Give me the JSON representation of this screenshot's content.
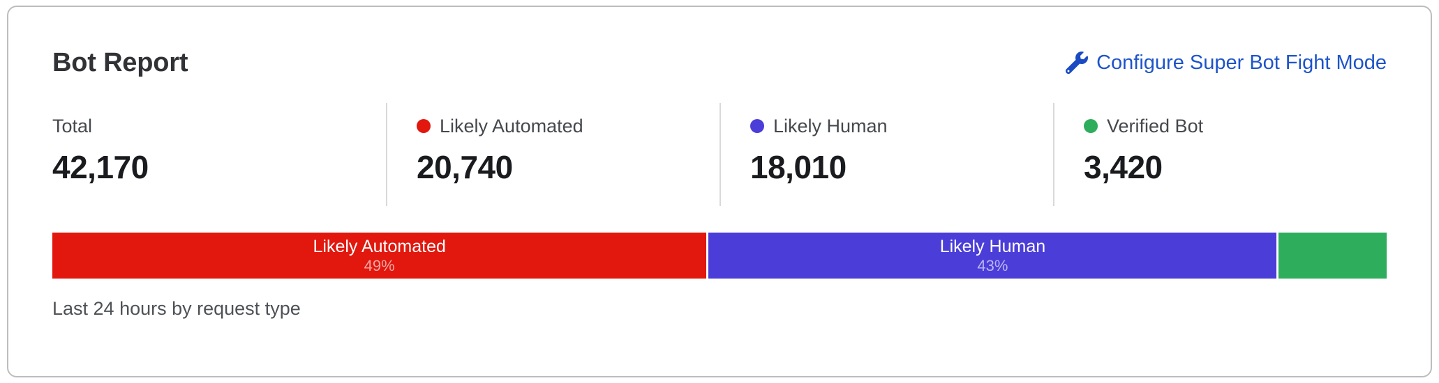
{
  "card": {
    "title": "Bot Report",
    "action_label": "Configure Super Bot Fight Mode",
    "action_icon": "wrench-icon",
    "caption": "Last 24 hours by request type",
    "link_color": "#1d54cb"
  },
  "stats": [
    {
      "label": "Total",
      "value": "42,170",
      "dot_color": null
    },
    {
      "label": "Likely Automated",
      "value": "20,740",
      "dot_color": "#e2170d"
    },
    {
      "label": "Likely Human",
      "value": "18,010",
      "dot_color": "#4b3dd8"
    },
    {
      "label": "Verified Bot",
      "value": "3,420",
      "dot_color": "#2ead5c"
    }
  ],
  "chart_data": {
    "type": "bar",
    "orientation": "horizontal-stacked",
    "title": "Bot Report",
    "subtitle": "Last 24 hours by request type",
    "total": 42170,
    "segments": [
      {
        "name": "Likely Automated",
        "value": 20740,
        "percent_label": "49%",
        "show_label": true,
        "color": "#e2170d"
      },
      {
        "name": "Likely Human",
        "value": 18010,
        "percent_label": "43%",
        "show_label": true,
        "color": "#4b3dd8"
      },
      {
        "name": "Verified Bot",
        "value": 3420,
        "percent_label": "8%",
        "show_label": false,
        "color": "#2ead5c"
      }
    ]
  }
}
